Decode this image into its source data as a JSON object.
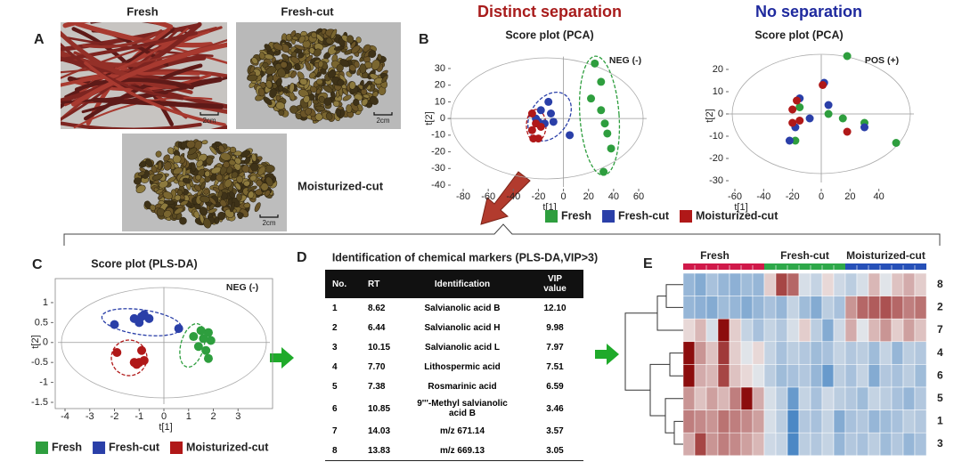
{
  "panel_a": {
    "label": "A",
    "photos": [
      {
        "title": "Fresh",
        "scale": "2cm"
      },
      {
        "title": "Fresh-cut",
        "scale": "2cm"
      },
      {
        "title": "Moisturized-cut",
        "scale": "2cm"
      }
    ]
  },
  "panel_b": {
    "label": "B",
    "headings": [
      "Distinct separation",
      "No separation"
    ],
    "charts": [
      {
        "type": "scatter",
        "title": "Score plot (PCA)",
        "mode": "NEG (-)",
        "x_label": "t[1]",
        "y_label": "t[2]",
        "xlim": [
          -80,
          60
        ],
        "ylim": [
          -40,
          35
        ],
        "xticks": [
          -80,
          -60,
          -40,
          -20,
          0,
          20,
          40,
          60
        ],
        "yticks": [
          -40,
          -30,
          -20,
          -10,
          0,
          10,
          20,
          30
        ],
        "series": [
          {
            "name": "Fresh",
            "color": "#2e9e3e",
            "x": [
              25,
              30,
              22,
              30,
              33,
              35,
              38,
              32
            ],
            "y": [
              33,
              22,
              12,
              5,
              -3,
              -9,
              -18,
              -32
            ]
          },
          {
            "name": "Fresh-cut",
            "color": "#2a3fa8",
            "x": [
              -12,
              -18,
              -10,
              -20,
              -15,
              -8,
              5,
              -22
            ],
            "y": [
              10,
              5,
              3,
              -2,
              -3,
              -2,
              -10,
              0
            ]
          },
          {
            "name": "Moisturized-cut",
            "color": "#b01818",
            "x": [
              -25,
              -22,
              -25,
              -20,
              -24,
              -18
            ],
            "y": [
              3,
              -3,
              -7,
              -12,
              -12,
              -5
            ]
          }
        ]
      },
      {
        "type": "scatter",
        "title": "Score plot (PCA)",
        "mode": "POS (+)",
        "x_label": "t[1]",
        "y_label": "t[2]",
        "xlim": [
          -60,
          60
        ],
        "ylim": [
          -30,
          25
        ],
        "xticks": [
          -60,
          -40,
          -20,
          0,
          20,
          40
        ],
        "yticks": [
          -30,
          -20,
          -10,
          0,
          10,
          20
        ],
        "series": [
          {
            "name": "Fresh",
            "color": "#2e9e3e",
            "x": [
              18,
              -15,
              -18,
              15,
              30,
              52,
              5
            ],
            "y": [
              26,
              3,
              -12,
              -2,
              -4,
              -13,
              0
            ]
          },
          {
            "name": "Fresh-cut",
            "color": "#2a3fa8",
            "x": [
              -15,
              -22,
              2,
              -8,
              5,
              30,
              -18
            ],
            "y": [
              7,
              -12,
              14,
              -2,
              4,
              -6,
              -6
            ]
          },
          {
            "name": "Moisturized-cut",
            "color": "#b01818",
            "x": [
              -17,
              -20,
              1,
              -15,
              18,
              -20
            ],
            "y": [
              6,
              -4,
              13,
              -3,
              -8,
              2
            ]
          }
        ]
      }
    ]
  },
  "panel_c": {
    "label": "C",
    "chart": {
      "type": "scatter",
      "title": "Score plot (PLS-DA)",
      "mode": "NEG (-)",
      "x_label": "t[1]",
      "y_label": "t[2]",
      "xlim": [
        -4,
        4
      ],
      "ylim": [
        -1.5,
        1.3
      ],
      "xticks": [
        -4,
        -3,
        -2,
        -1,
        0,
        1,
        2,
        3
      ],
      "yticks": [
        -1.5,
        -1,
        -0.5,
        0,
        0.5,
        1
      ],
      "series": [
        {
          "name": "Fresh",
          "color": "#2e9e3e",
          "x": [
            1.5,
            1.8,
            1.6,
            1.9,
            1.4,
            1.7,
            1.8,
            1.2
          ],
          "y": [
            0.3,
            0.25,
            0.1,
            0.05,
            -0.1,
            -0.2,
            -0.4,
            0.15
          ]
        },
        {
          "name": "Fresh-cut",
          "color": "#2a3fa8",
          "x": [
            -2,
            -1.2,
            -0.8,
            -0.6,
            -1,
            0.6,
            -0.9
          ],
          "y": [
            0.45,
            0.6,
            0.7,
            0.6,
            0.5,
            0.35,
            0.65
          ]
        },
        {
          "name": "Moisturized-cut",
          "color": "#b01818",
          "x": [
            -1.9,
            -1.2,
            -1,
            -0.9,
            -1.1,
            -0.8
          ],
          "y": [
            -0.25,
            -0.5,
            -0.5,
            -0.2,
            -0.55,
            -0.45
          ]
        }
      ]
    }
  },
  "panel_d": {
    "label": "D",
    "title": "Identification of chemical markers (PLS-DA,VIP>3)",
    "table": {
      "header": [
        "No.",
        "RT",
        "Identification",
        "VIP value"
      ],
      "rows": [
        [
          "1",
          "8.62",
          "Salvianolic acid B",
          "12.10"
        ],
        [
          "2",
          "6.44",
          "Salvianolic acid H",
          "9.98"
        ],
        [
          "3",
          "10.15",
          "Salvianolic acid L",
          "7.97"
        ],
        [
          "4",
          "7.70",
          "Lithospermic acid",
          "7.51"
        ],
        [
          "5",
          "7.38",
          "Rosmarinic  acid",
          "6.59"
        ],
        [
          "6",
          "10.85",
          "9'''-Methyl salvianolic acid B",
          "3.46"
        ],
        [
          "7",
          "14.03",
          "m/z 671.14",
          "3.57"
        ],
        [
          "8",
          "13.83",
          "m/z 669.13",
          "3.05"
        ]
      ]
    }
  },
  "panel_e": {
    "label": "E",
    "type": "heatmap",
    "groups": [
      {
        "name": "Fresh",
        "color": "#d0194a"
      },
      {
        "name": "Fresh-cut",
        "color": "#2ea84a"
      },
      {
        "name": "Moisturized-cut",
        "color": "#2650b8"
      }
    ],
    "rows": [
      "8",
      "2",
      "7",
      "4",
      "6",
      "5",
      "1",
      "3"
    ],
    "zlim": [
      -2,
      2
    ],
    "colors": [
      "#3a7dc0",
      "#f2efee",
      "#8c0d0d"
    ],
    "values": [
      [
        -1,
        -1.2,
        -0.8,
        -1,
        -1.1,
        -0.9,
        -1,
        0.3,
        1.5,
        1.2,
        -0.3,
        -0.5,
        0.2,
        -0.4,
        -0.6,
        -0.3,
        0.5,
        -0.2,
        0.4,
        0.6,
        0.3
      ],
      [
        -1,
        -1.1,
        -1.2,
        -0.9,
        -1,
        -1.2,
        -1,
        -0.8,
        -1,
        -0.5,
        -0.9,
        -1.2,
        -0.6,
        -0.8,
        0.8,
        1.2,
        1.3,
        1.4,
        1.2,
        1,
        1.1
      ],
      [
        0.2,
        0.5,
        -0.3,
        2,
        0.3,
        -0.5,
        -0.8,
        -0.5,
        -0.7,
        -0.3,
        0.3,
        -0.6,
        -1.2,
        -0.4,
        0.6,
        -0.2,
        0.5,
        0.8,
        0.3,
        0.7,
        0.4
      ],
      [
        2,
        0.8,
        0.4,
        1.6,
        0.3,
        -0.2,
        0.2,
        -0.5,
        -0.8,
        -0.6,
        -0.7,
        -0.9,
        -0.8,
        -0.5,
        -0.7,
        -0.6,
        -0.9,
        -0.5,
        -1,
        -0.6,
        -0.7
      ],
      [
        2,
        0.6,
        0.5,
        1.5,
        0.4,
        0.2,
        -0.2,
        -0.6,
        -0.9,
        -0.8,
        -0.7,
        -1,
        -1.5,
        -0.6,
        -0.8,
        -0.5,
        -1.2,
        -0.7,
        -0.8,
        -0.6,
        -0.9
      ],
      [
        0.8,
        0.4,
        0.7,
        0.5,
        1,
        2,
        0.6,
        -0.3,
        -0.6,
        -1.5,
        -0.5,
        -0.8,
        -0.4,
        -0.6,
        -0.7,
        -0.9,
        -0.5,
        -0.6,
        -0.8,
        -1,
        -0.7
      ],
      [
        1,
        0.9,
        0.8,
        1.1,
        1,
        0.9,
        0.7,
        -0.3,
        -0.6,
        -1.8,
        -0.7,
        -0.8,
        -0.5,
        -1.2,
        -0.8,
        -0.7,
        -1,
        -0.9,
        -0.8,
        -0.6,
        -0.7
      ],
      [
        0.6,
        1.5,
        0.8,
        1,
        0.9,
        0.7,
        0.5,
        -0.4,
        -0.5,
        -1.8,
        -0.6,
        -0.7,
        -0.5,
        -1,
        -0.7,
        -0.8,
        -0.6,
        -0.9,
        -0.7,
        -1,
        -0.8
      ]
    ]
  }
}
